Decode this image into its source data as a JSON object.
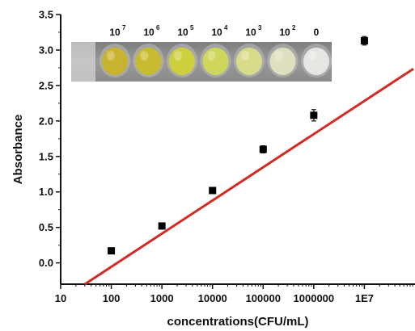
{
  "chart_data": {
    "type": "scatter",
    "title": "",
    "xlabel": "concentrations(CFU/mL)",
    "ylabel": "Absorbance",
    "x_scale": "log",
    "xlim": [
      10,
      100000000
    ],
    "ylim": [
      -0.3,
      3.5
    ],
    "x_ticks": [
      10,
      100,
      1000,
      10000,
      100000,
      1000000,
      10000000
    ],
    "x_tick_labels": [
      "10",
      "100",
      "1000",
      "10000",
      "100000",
      "1000000",
      "1E7"
    ],
    "y_ticks": [
      0.0,
      0.5,
      1.0,
      1.5,
      2.0,
      2.5,
      3.0,
      3.5
    ],
    "y_tick_labels": [
      "0.0",
      "0.5",
      "1.0",
      "1.5",
      "2.0",
      "2.5",
      "3.0",
      "3.5"
    ],
    "grid": false,
    "series": [
      {
        "marker": "square",
        "color": "#000000",
        "x": [
          100,
          1000,
          10000,
          100000,
          1000000,
          10000000
        ],
        "y": [
          0.17,
          0.52,
          1.02,
          1.6,
          2.08,
          3.13
        ],
        "error": [
          0.02,
          0.03,
          0.02,
          0.05,
          0.08,
          0.06
        ]
      }
    ],
    "fit_line": {
      "color": "#d42a24",
      "points": [
        [
          30,
          -0.3
        ],
        [
          100000000,
          2.75
        ]
      ]
    },
    "inset": {
      "description_labels": [
        {
          "base": "10",
          "sup": "7"
        },
        {
          "base": "10",
          "sup": "6"
        },
        {
          "base": "10",
          "sup": "5"
        },
        {
          "base": "10",
          "sup": "4"
        },
        {
          "base": "10",
          "sup": "3"
        },
        {
          "base": "10",
          "sup": "2"
        },
        {
          "base": "0",
          "sup": ""
        }
      ],
      "well_colors": [
        "#c9b22e",
        "#c8bb2f",
        "#cdcf3c",
        "#cfd65c",
        "#d8dc8a",
        "#dfe0bd",
        "#e6e6e2"
      ]
    }
  }
}
